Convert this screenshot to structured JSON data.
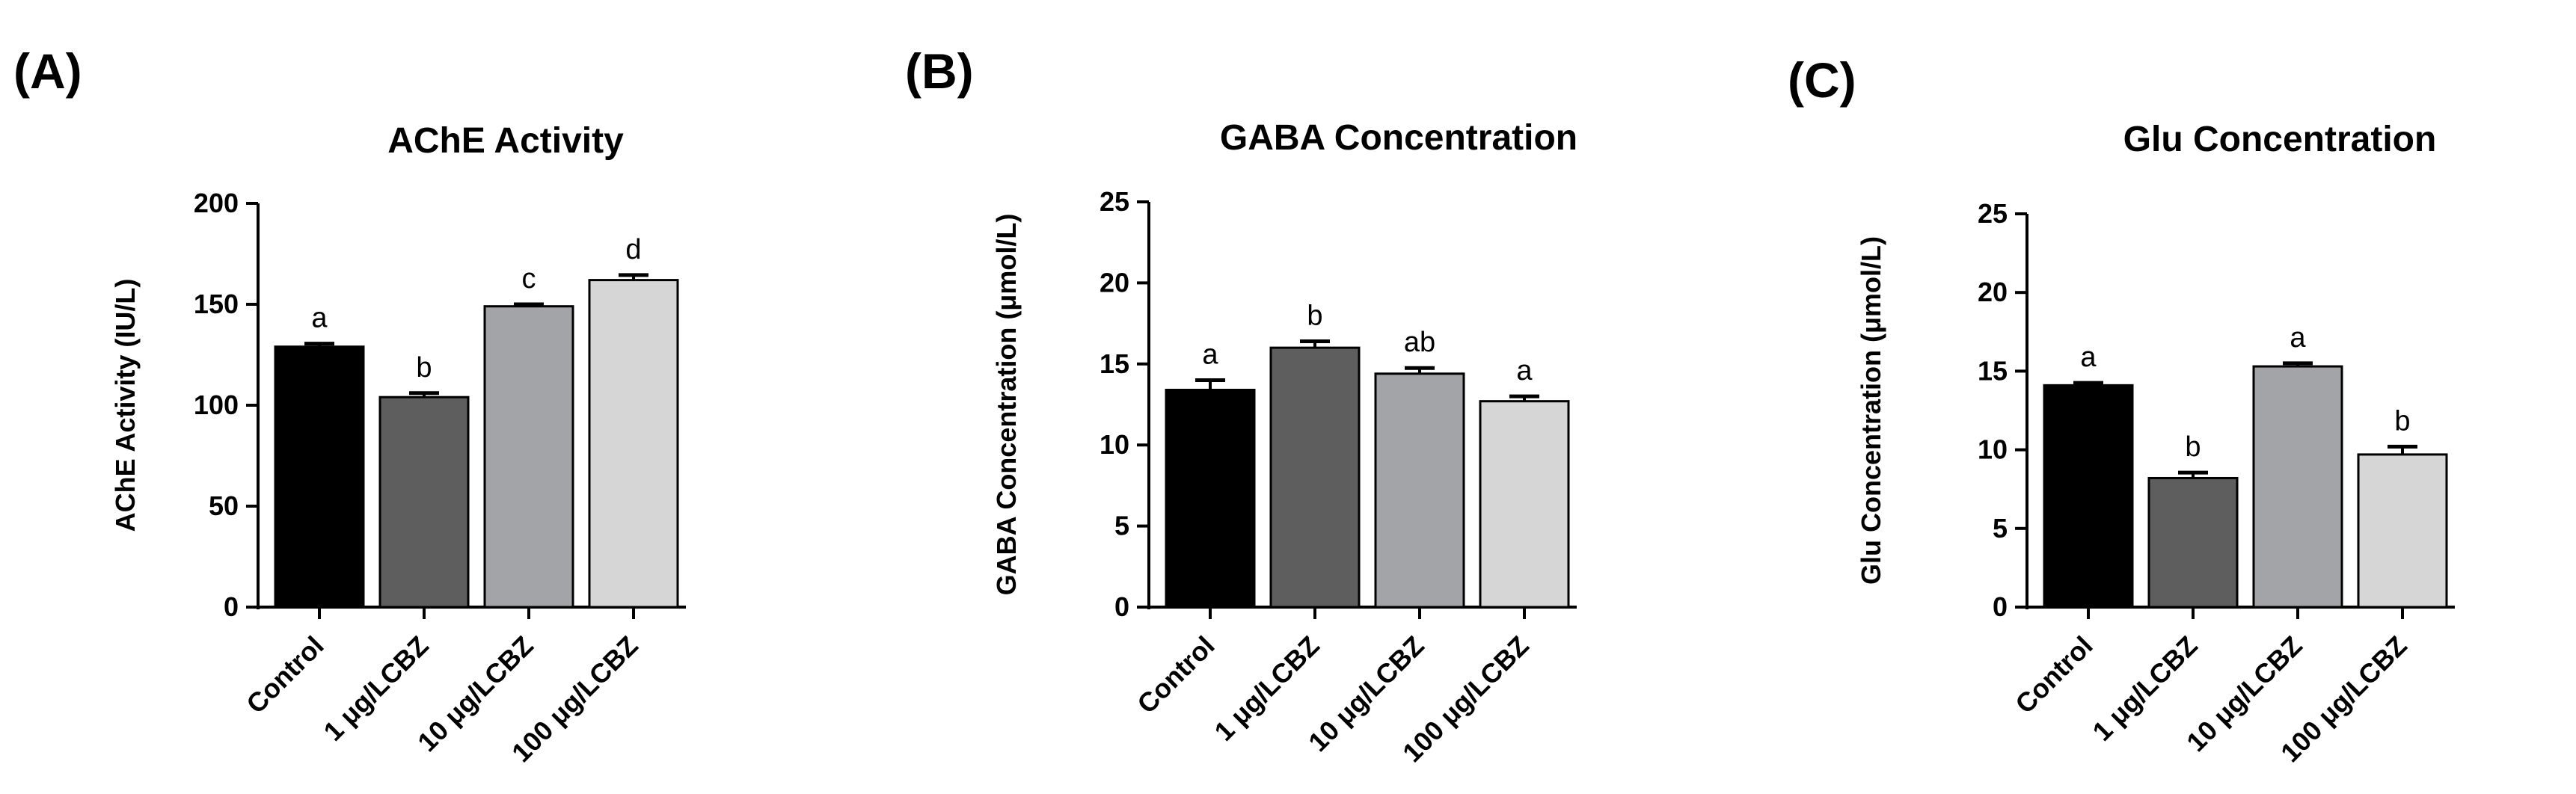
{
  "categories": [
    "Control",
    "1 μg/LCBZ",
    "10 μg/LCBZ",
    "100 μg/LCBZ"
  ],
  "colors": {
    "bars": [
      "#000000",
      "#5e5e5e",
      "#a3a4a7",
      "#d6d6d6"
    ],
    "stroke": "#000000"
  },
  "chart_data": [
    {
      "type": "bar",
      "panel": "(A)",
      "title": "AChE Activity",
      "ylabel": "AChE Activity (IU/L)",
      "xlabel": "",
      "ylim": [
        0,
        200
      ],
      "yticks": [
        0,
        50,
        100,
        150,
        200
      ],
      "categories": [
        "Control",
        "1 μg/LCBZ",
        "10 μg/LCBZ",
        "100 μg/LCBZ"
      ],
      "values": [
        129,
        104,
        149,
        162
      ],
      "errors": [
        1.5,
        2,
        1,
        2.5
      ],
      "letters": [
        "a",
        "b",
        "c",
        "d"
      ]
    },
    {
      "type": "bar",
      "panel": "(B)",
      "title": "GABA Concentration",
      "ylabel": "GABA Concentration (μmol/L)",
      "xlabel": "",
      "ylim": [
        0,
        25
      ],
      "yticks": [
        0,
        5,
        10,
        15,
        20,
        25
      ],
      "categories": [
        "Control",
        "1 μg/LCBZ",
        "10 μg/LCBZ",
        "100 μg/LCBZ"
      ],
      "values": [
        13.4,
        16.0,
        14.4,
        12.7
      ],
      "errors": [
        0.6,
        0.4,
        0.35,
        0.3
      ],
      "letters": [
        "a",
        "b",
        "ab",
        "a"
      ]
    },
    {
      "type": "bar",
      "panel": "(C)",
      "title": "Glu Concentration",
      "ylabel": "Glu Concentration (μmol/L)",
      "xlabel": "",
      "ylim": [
        0,
        25
      ],
      "yticks": [
        0,
        5,
        10,
        15,
        20,
        25
      ],
      "categories": [
        "Control",
        "1 μg/LCBZ",
        "10 μg/LCBZ",
        "100 μg/LCBZ"
      ],
      "values": [
        14.1,
        8.2,
        15.3,
        9.7
      ],
      "errors": [
        0.15,
        0.35,
        0.2,
        0.5
      ],
      "letters": [
        "a",
        "b",
        "a",
        "b"
      ]
    }
  ]
}
